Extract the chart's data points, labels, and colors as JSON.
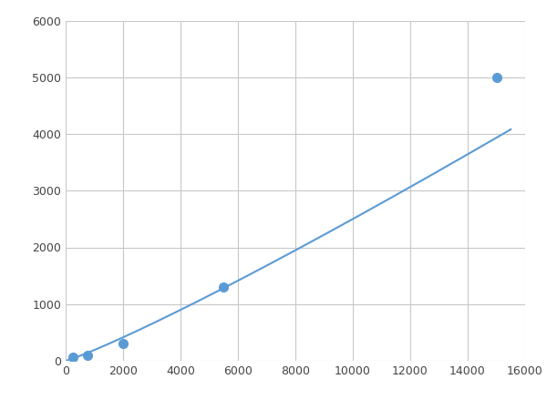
{
  "x": [
    250,
    750,
    2000,
    5500,
    15000
  ],
  "y": [
    60,
    100,
    300,
    1300,
    5000
  ],
  "line_color": "#5b9bd5",
  "marker_color": "#5b9bd5",
  "marker_size": 7,
  "line_width": 1.5,
  "xlim": [
    0,
    16000
  ],
  "ylim": [
    0,
    6000
  ],
  "xticks": [
    0,
    2000,
    4000,
    6000,
    8000,
    10000,
    12000,
    14000,
    16000
  ],
  "yticks": [
    0,
    1000,
    2000,
    3000,
    4000,
    5000,
    6000
  ],
  "grid": true,
  "background_color": "#ffffff"
}
